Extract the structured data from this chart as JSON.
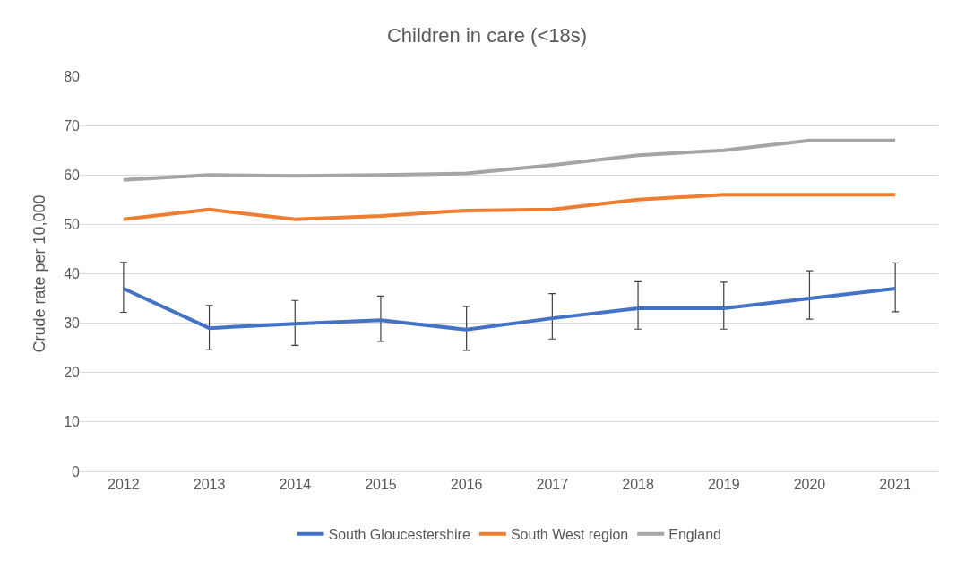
{
  "chart_data": {
    "type": "line",
    "title": "Children in care (<18s)",
    "ylabel": "Crude rate per 10,000",
    "categories": [
      "2012",
      "2013",
      "2014",
      "2015",
      "2016",
      "2017",
      "2018",
      "2019",
      "2020",
      "2021"
    ],
    "series": [
      {
        "name": "South Gloucestershire",
        "color": "#4472c4",
        "values": [
          37,
          29,
          29.9,
          30.6,
          28.7,
          31,
          33,
          33,
          35,
          37
        ],
        "errors": [
          [
            32.2,
            42.3
          ],
          [
            24.6,
            33.6
          ],
          [
            25.5,
            34.6
          ],
          [
            26.3,
            35.5
          ],
          [
            24.5,
            33.4
          ],
          [
            26.8,
            36
          ],
          [
            28.8,
            38.4
          ],
          [
            28.8,
            38.3
          ],
          [
            30.8,
            40.6
          ],
          [
            32.3,
            42.2
          ]
        ]
      },
      {
        "name": "South West region",
        "color": "#ed7d31",
        "values": [
          51,
          53,
          51,
          51.7,
          52.8,
          53,
          55,
          56,
          56,
          56
        ]
      },
      {
        "name": "England",
        "color": "#a5a5a5",
        "values": [
          59,
          60,
          59.8,
          60,
          60.3,
          62,
          64,
          65,
          67,
          67
        ]
      }
    ],
    "ylim": [
      0,
      80
    ],
    "yticks": [
      0,
      10,
      20,
      30,
      40,
      50,
      60,
      70,
      80
    ],
    "grid": "y",
    "legend": "bottom",
    "marker": "none",
    "line_style": "solid"
  }
}
